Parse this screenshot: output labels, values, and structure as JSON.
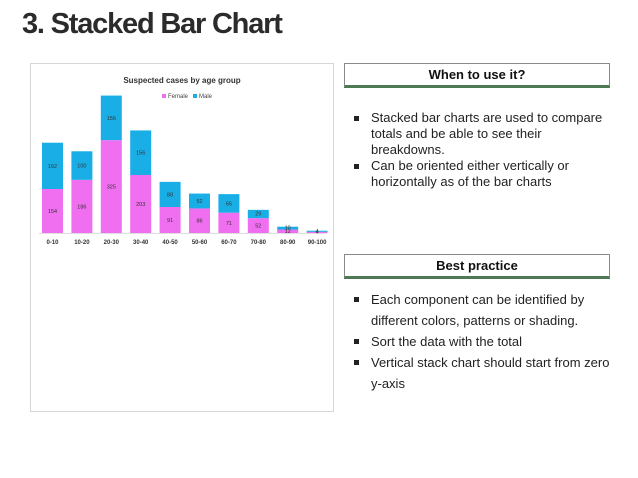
{
  "slide": {
    "title": "3. Stacked Bar Chart"
  },
  "when_to_use": {
    "heading": "When to use it?",
    "bullets": [
      "Stacked bar charts are used to compare totals and be able to see their breakdowns.",
      "Can be oriented either vertically or horizontally as of the bar charts"
    ]
  },
  "best_practice": {
    "heading": "Best practice",
    "bullets": [
      "Each component can be identified by different colors, patterns or shading.",
      "Sort the data with the total",
      "Vertical stack chart should start from zero y-axis"
    ]
  },
  "colors": {
    "female": "#f06ef0",
    "male": "#1aaee6",
    "accent_border": "#4d7a55"
  },
  "chart_data": {
    "type": "bar",
    "stacked": true,
    "title": "Suspected cases by age group",
    "legend_position": "top",
    "categories": [
      "0-10",
      "10-20",
      "20-30",
      "30-40",
      "40-50",
      "50-60",
      "60-70",
      "70-80",
      "80-90",
      "90-100"
    ],
    "series": [
      {
        "name": "Female",
        "values": [
          154,
          186,
          325,
          203,
          91,
          86,
          71,
          52,
          12,
          4
        ]
      },
      {
        "name": "Male",
        "values": [
          162,
          100,
          156,
          156,
          88,
          52,
          65,
          29,
          10,
          4
        ]
      }
    ],
    "ylim": [
      0,
      560
    ],
    "grid": false
  }
}
